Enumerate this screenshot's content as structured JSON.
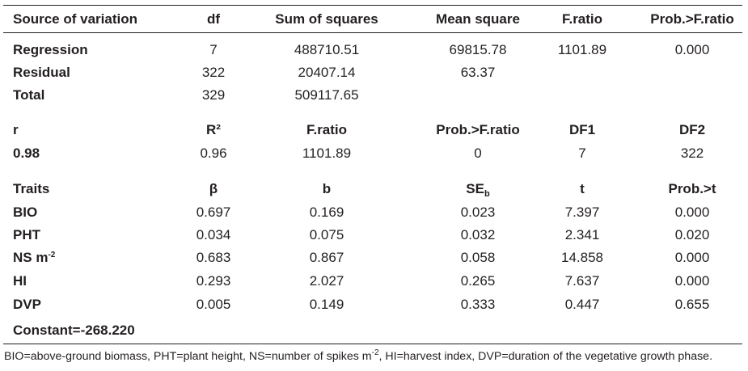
{
  "anova": {
    "headers": [
      "Source of variation",
      "df",
      "Sum of squares",
      "Mean square",
      "F.ratio",
      "Prob.>F.ratio"
    ],
    "rows": [
      [
        "Regression",
        "7",
        "488710.51",
        "69815.78",
        "1101.89",
        "0.000"
      ],
      [
        "Residual",
        "322",
        "20407.14",
        "63.37",
        "",
        ""
      ],
      [
        "Total",
        "329",
        "509117.65",
        "",
        "",
        ""
      ]
    ]
  },
  "summary": {
    "headers": [
      "r",
      "R²",
      "F.ratio",
      "Prob.>F.ratio",
      "DF1",
      "DF2"
    ],
    "values": [
      "0.98",
      "0.96",
      "1101.89",
      "0",
      "7",
      "322"
    ]
  },
  "coefficients": {
    "headers": [
      "Traits",
      "β",
      "b",
      "SE",
      "t",
      "Prob.>t"
    ],
    "se_subscript": "b",
    "rows": [
      [
        "BIO",
        "0.697",
        "0.169",
        "0.023",
        "7.397",
        "0.000"
      ],
      [
        "PHT",
        "0.034",
        "0.075",
        "0.032",
        "2.341",
        "0.020"
      ],
      [
        "NS m",
        "0.683",
        "0.867",
        "0.058",
        "14.858",
        "0.000"
      ],
      [
        "HI",
        "0.293",
        "2.027",
        "0.265",
        "7.637",
        "0.000"
      ],
      [
        "DVP",
        "0.005",
        "0.149",
        "0.333",
        "0.447",
        "0.655"
      ]
    ],
    "ns_superscript": "-2",
    "constant": "Constant=-268.220"
  },
  "footnote": {
    "part1": "BIO=above-ground biomass, PHT=plant height, NS=number of spikes m",
    "sup": "-2",
    "part2": ", HI=harvest index, DVP=duration of the vegetative growth phase."
  }
}
